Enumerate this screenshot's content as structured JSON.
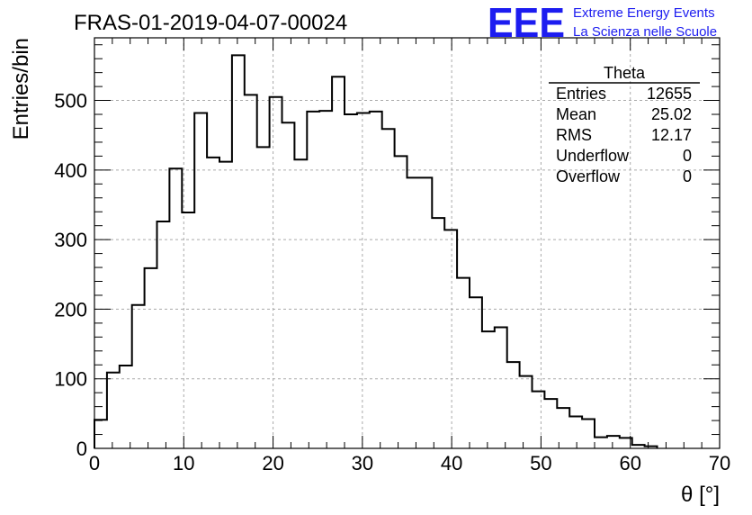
{
  "chart_data": {
    "type": "bar",
    "title": "FRAS-01-2019-04-07-00024",
    "xlabel": "θ [°]",
    "ylabel": "Entries/bin",
    "xlim": [
      0,
      70
    ],
    "ylim": [
      0,
      590
    ],
    "x_ticks": [
      "0",
      "10",
      "20",
      "30",
      "40",
      "50",
      "60",
      "70"
    ],
    "y_ticks": [
      "0",
      "100",
      "200",
      "300",
      "400",
      "500"
    ],
    "grid": true,
    "bin_width": 1.4,
    "bin_start": 0,
    "values": [
      41,
      109,
      119,
      206,
      259,
      326,
      402,
      339,
      482,
      418,
      412,
      565,
      508,
      433,
      505,
      468,
      415,
      484,
      485,
      534,
      480,
      482,
      484,
      459,
      420,
      389,
      389,
      331,
      314,
      245,
      217,
      168,
      174,
      124,
      104,
      82,
      71,
      58,
      46,
      42,
      16,
      18,
      15,
      5,
      3
    ]
  },
  "stats_box": {
    "title": "Theta",
    "rows": [
      {
        "label": "Entries",
        "value": "12655"
      },
      {
        "label": "Mean",
        "value": "25.02"
      },
      {
        "label": "RMS",
        "value": "12.17"
      },
      {
        "label": "Underflow",
        "value": "0"
      },
      {
        "label": "Overflow",
        "value": "0"
      }
    ]
  },
  "logo": {
    "mark": "EEE",
    "line1": "Extreme Energy Events",
    "line2": "La Scienza nelle Scuole",
    "color": "#1c1cf0"
  }
}
